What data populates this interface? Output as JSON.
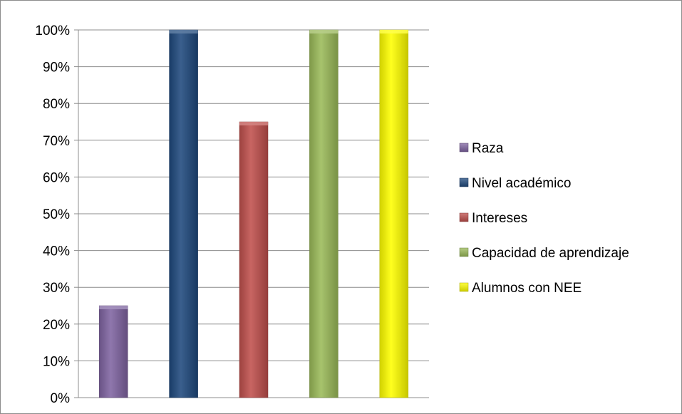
{
  "chart_data": {
    "type": "bar",
    "title": "",
    "xlabel": "",
    "ylabel": "",
    "ylim": [
      0,
      100
    ],
    "y_ticks": [
      "0%",
      "10%",
      "20%",
      "30%",
      "40%",
      "50%",
      "60%",
      "70%",
      "80%",
      "90%",
      "100%"
    ],
    "grid": "horizontal",
    "legend_position": "right",
    "series": [
      {
        "name": "Raza",
        "value": 25,
        "color": "#8064a2"
      },
      {
        "name": "Nivel académico",
        "value": 100,
        "color": "#1f497d"
      },
      {
        "name": "Intereses",
        "value": 75,
        "color": "#c0504d"
      },
      {
        "name": "Capacidad de aprendizaje",
        "value": 100,
        "color": "#9bbb59"
      },
      {
        "name": "Alumnos con NEE",
        "value": 100,
        "color": "#ffff00"
      }
    ]
  }
}
